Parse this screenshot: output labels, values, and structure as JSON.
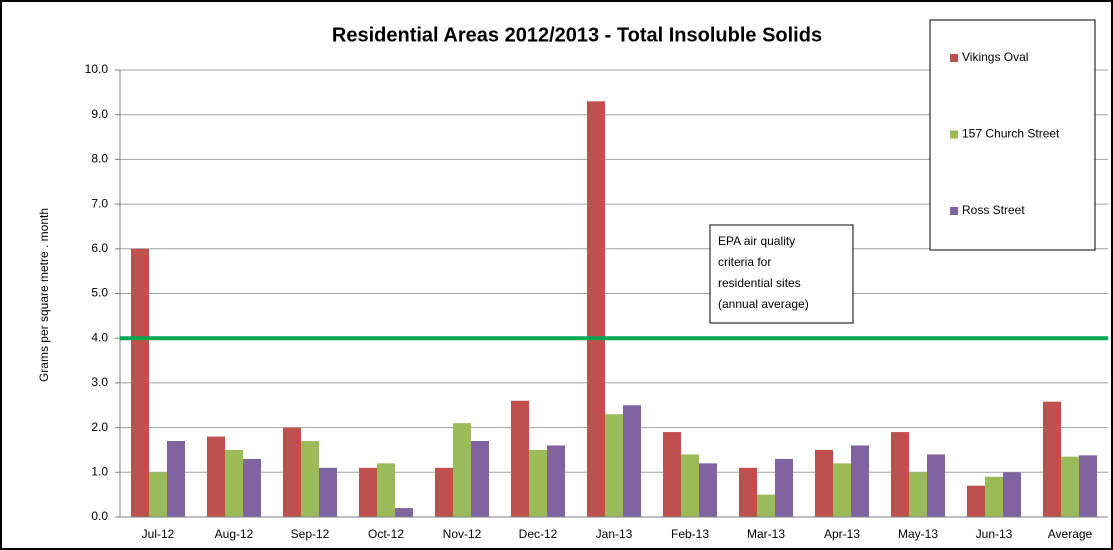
{
  "chart_data": {
    "type": "bar",
    "title": "Residential Areas 2012/2013 - Total Insoluble Solids",
    "y_label": "Grams per square metre . month",
    "categories": [
      "Jul-12",
      "Aug-12",
      "Sep-12",
      "Oct-12",
      "Nov-12",
      "Dec-12",
      "Jan-13",
      "Feb-13",
      "Mar-13",
      "Apr-13",
      "May-13",
      "Jun-13",
      "Average"
    ],
    "series": [
      {
        "name": "Vikings Oval",
        "color": "#c0504d",
        "values": [
          6.0,
          1.8,
          2.0,
          1.1,
          1.1,
          2.6,
          9.3,
          1.9,
          1.1,
          1.5,
          1.9,
          0.7,
          2.58
        ]
      },
      {
        "name": "157 Church Street",
        "color": "#9bbb59",
        "values": [
          1.0,
          1.5,
          1.7,
          1.2,
          2.1,
          1.5,
          2.3,
          1.4,
          0.5,
          1.2,
          1.0,
          0.9,
          1.35
        ]
      },
      {
        "name": "Ross Street",
        "color": "#8064a2",
        "values": [
          1.7,
          1.3,
          1.1,
          0.2,
          1.7,
          1.6,
          2.5,
          1.2,
          1.3,
          1.6,
          1.4,
          1.0,
          1.38
        ]
      }
    ],
    "reference_line": {
      "value": 4.0,
      "color": "#00a651",
      "label_lines": [
        "EPA air quality",
        "criteria for",
        "residential sites",
        "(annual average)"
      ]
    },
    "ylim": [
      0,
      10
    ],
    "yticks": [
      {
        "value": 0,
        "label": "0.0"
      },
      {
        "value": 1,
        "label": "1.0"
      },
      {
        "value": 2,
        "label": "2.0"
      },
      {
        "value": 3,
        "label": "3.0"
      },
      {
        "value": 4,
        "label": "4.0"
      },
      {
        "value": 5,
        "label": "5.0"
      },
      {
        "value": 6,
        "label": "6.0"
      },
      {
        "value": 7,
        "label": "7.0"
      },
      {
        "value": 8,
        "label": "8.0"
      },
      {
        "value": 9,
        "label": "9.0"
      },
      {
        "value": 10,
        "label": "10.0"
      }
    ],
    "grid": true,
    "legend": "top-right"
  }
}
